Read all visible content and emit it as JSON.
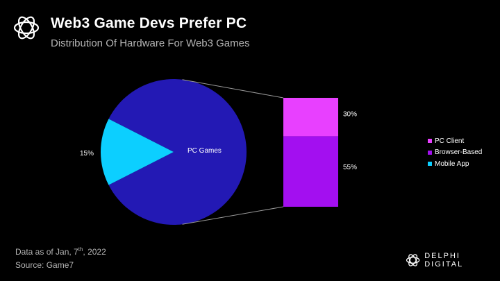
{
  "header": {
    "title": "Web3 Game Devs Prefer PC",
    "subtitle": "Distribution Of Hardware For Web3 Games"
  },
  "footer": {
    "date_prefix": "Data as of Jan, 7",
    "date_sup": "th",
    "date_suffix": ", 2022",
    "source": "Source: Game7"
  },
  "brand": {
    "name": "DELPHI DIGITAL",
    "icon": "delphi-logo-icon"
  },
  "chart_data": [
    {
      "type": "pie",
      "slices": [
        {
          "label": "PC Games",
          "value": 85,
          "color": "#2319b4",
          "data_label": "PC Games"
        },
        {
          "label": "",
          "value": 15,
          "color": "#0ccfff",
          "data_label": "15%"
        }
      ]
    },
    {
      "type": "bar",
      "stacked": true,
      "series": [
        {
          "name": "PC Client",
          "value": 30,
          "color": "#e840ff",
          "data_label": "30%"
        },
        {
          "name": "Browser-Based",
          "value": 55,
          "color": "#a30ff0",
          "data_label": "55%"
        }
      ],
      "legend": {
        "position": "right",
        "items": [
          {
            "name": "PC Client",
            "color": "#e840ff"
          },
          {
            "name": "Browser-Based",
            "color": "#a30ff0"
          },
          {
            "name": "Mobile App",
            "color": "#0ccfff"
          }
        ]
      }
    }
  ]
}
